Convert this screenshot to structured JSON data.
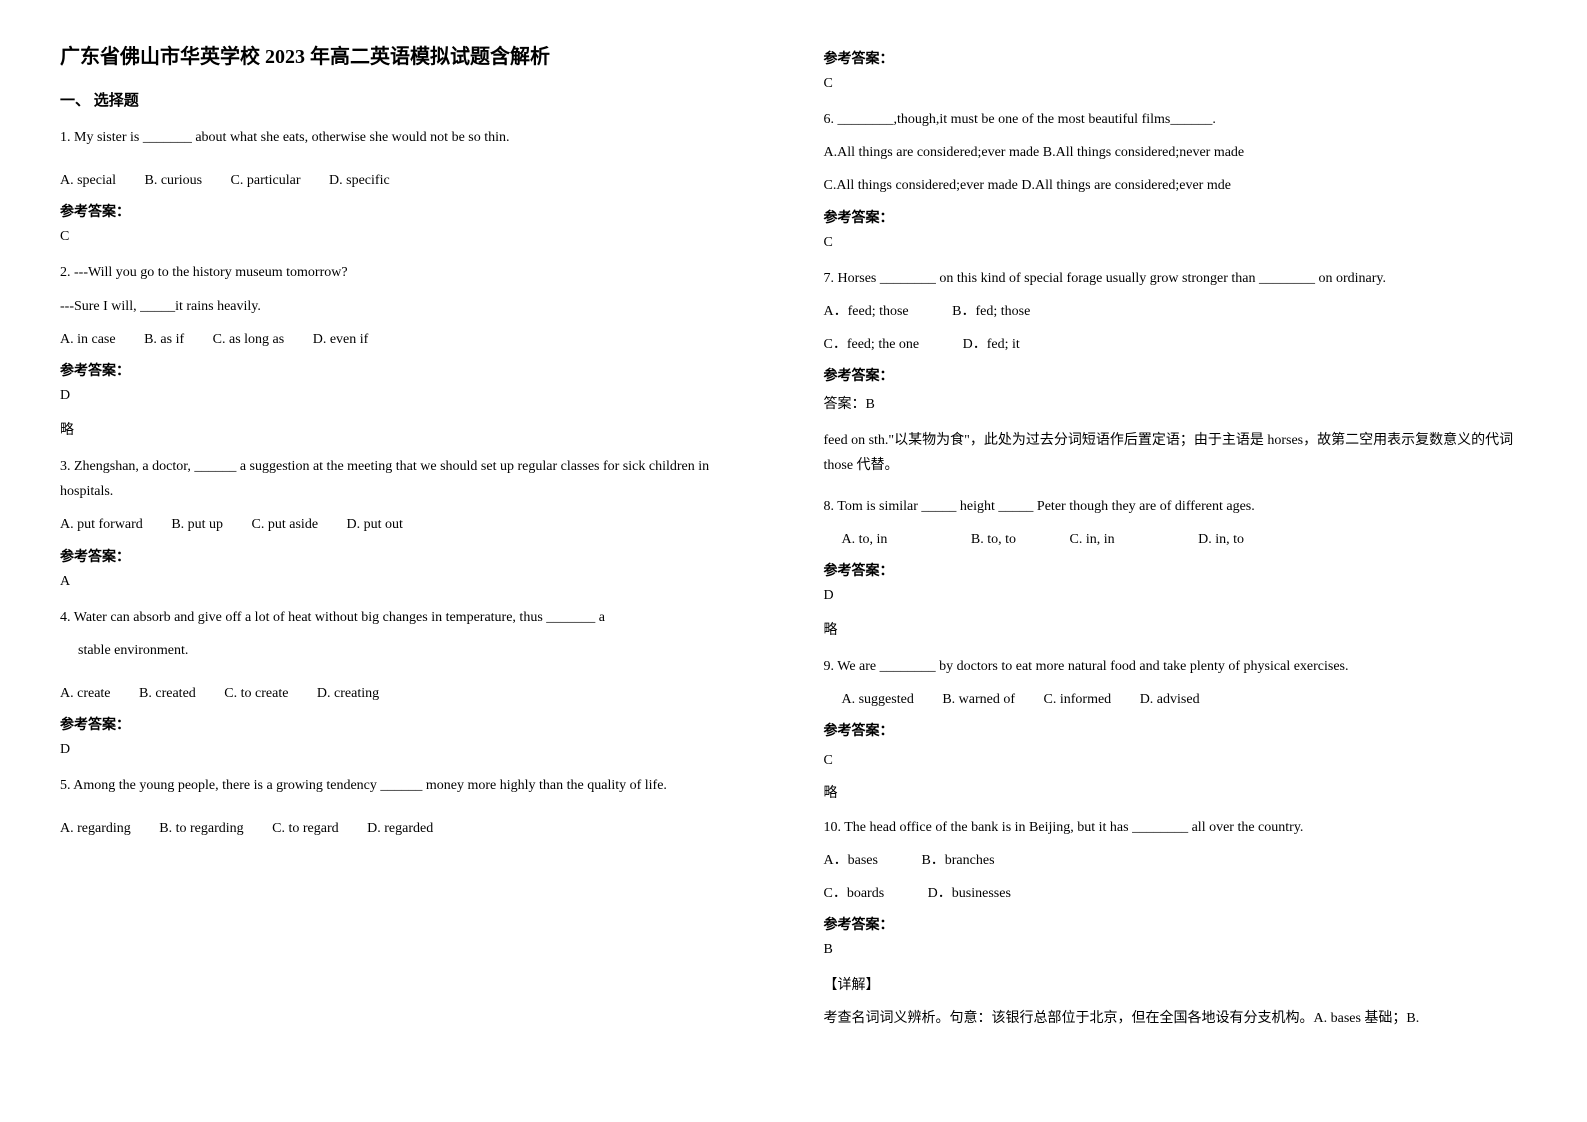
{
  "title": "广东省佛山市华英学校 2023 年高二英语模拟试题含解析",
  "section1_header": "一、 选择题",
  "answer_label": "参考答案：",
  "brief_note": "略",
  "detail_label": "【详解】",
  "q1": {
    "text": "1. My sister is _______ about what she eats, otherwise she would not be so thin.",
    "optA": "A. special",
    "optB": "B. curious",
    "optC": "C. particular",
    "optD": "D. specific",
    "answer": "C"
  },
  "q2": {
    "text": "2. ---Will you go to the history museum tomorrow?",
    "text2": "  ---Sure I will, _____it rains heavily.",
    "optA": "A. in case",
    "optB": "B. as if",
    "optC": "C. as long as",
    "optD": "D. even if",
    "answer": "D"
  },
  "q3": {
    "text": "3. Zhengshan, a doctor, ______ a suggestion at the meeting that we should set up regular classes for sick children in hospitals.",
    "optA": "A. put forward",
    "optB": "B. put up",
    "optC": "C. put aside",
    "optD": "D. put out",
    "answer": "A"
  },
  "q4": {
    "text": "4. Water can absorb and give off a lot of heat without big changes in temperature, thus _______ a",
    "text2": "stable environment.",
    "optA": "A. create",
    "optB": "B. created",
    "optC": "C. to create",
    "optD": "D. creating",
    "answer": "D"
  },
  "q5": {
    "text": "5. Among the young people, there is a growing tendency ______ money more highly than the quality of life.",
    "optA": "A. regarding",
    "optB": "B. to regarding",
    "optC": "C. to regard",
    "optD": "D. regarded",
    "answer": "C"
  },
  "q6": {
    "text": "6. ________,though,it must be one of the most beautiful films______.",
    "optAB": "A.All things are considered;ever made B.All things considered;never made",
    "optCD": "C.All things considered;ever made    D.All things are considered;ever mde",
    "answer": "C"
  },
  "q7": {
    "text": "7. Horses ________ on this kind of special forage usually grow stronger than ________ on ordinary.",
    "optA": "A．feed; those",
    "optB": "B．fed; those",
    "optC": "C．feed; the one",
    "optD": "D．fed; it",
    "answer": "答案：B",
    "explanation": "feed on sth.\"以某物为食\"，此处为过去分词短语作后置定语；由于主语是 horses，故第二空用表示复数意义的代词 those 代替。"
  },
  "q8": {
    "text": "8. Tom is similar _____ height _____ Peter though they are of different ages.",
    "optA": "A. to, in",
    "optB": "B. to, to",
    "optC": "C. in, in",
    "optD": "D. in, to",
    "answer": "D"
  },
  "q9": {
    "text": "9. We are ________ by doctors to eat more natural food and take plenty of physical exercises.",
    "optA": "A. suggested",
    "optB": "B. warned of",
    "optC": "C. informed",
    "optD": "D. advised",
    "answer": "C"
  },
  "q10": {
    "text": "10. The head office of the bank is in Beijing, but it has ________ all over the country.",
    "optA": "A．bases",
    "optB": "B．branches",
    "optC": "C．boards",
    "optD": "D．businesses",
    "answer": "B",
    "explanation": "考查名词词义辨析。句意：该银行总部位于北京，但在全国各地设有分支机构。A. bases 基础；B."
  }
}
